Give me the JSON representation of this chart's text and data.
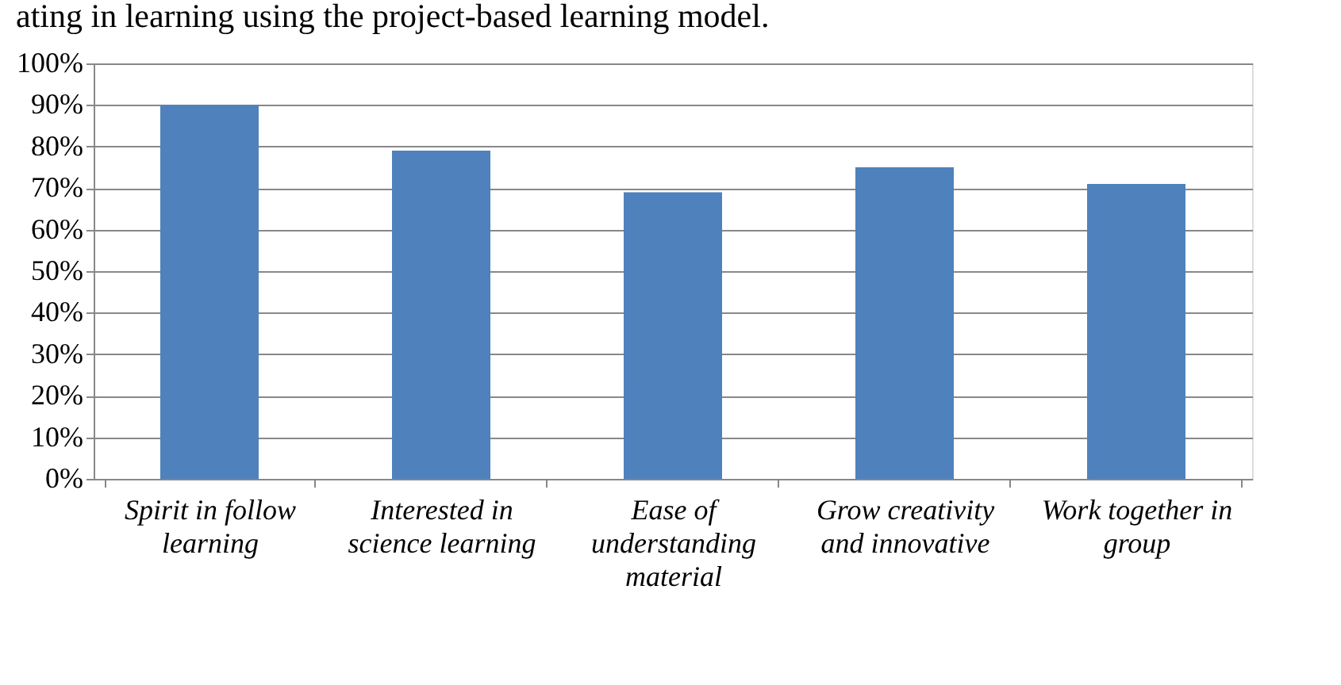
{
  "chart_data": {
    "type": "bar",
    "title": "ating in learning using the project-based learning model.",
    "categories": [
      "Spirit in follow learning",
      "Interested in science learning",
      "Ease of understanding material",
      "Grow creativity and innovative",
      "Work together in group"
    ],
    "values": [
      90,
      79,
      69,
      75,
      71
    ],
    "color": "#4f81bd",
    "ylim": [
      0,
      100
    ],
    "yticks": [
      {
        "value": 0,
        "label": "0%"
      },
      {
        "value": 10,
        "label": "10%"
      },
      {
        "value": 20,
        "label": "20%"
      },
      {
        "value": 30,
        "label": "30%"
      },
      {
        "value": 40,
        "label": "40%"
      },
      {
        "value": 50,
        "label": "50%"
      },
      {
        "value": 60,
        "label": "60%"
      },
      {
        "value": 70,
        "label": "70%"
      },
      {
        "value": 80,
        "label": "80%"
      },
      {
        "value": 90,
        "label": "90%"
      },
      {
        "value": 100,
        "label": "100%"
      }
    ],
    "grid": "y"
  }
}
